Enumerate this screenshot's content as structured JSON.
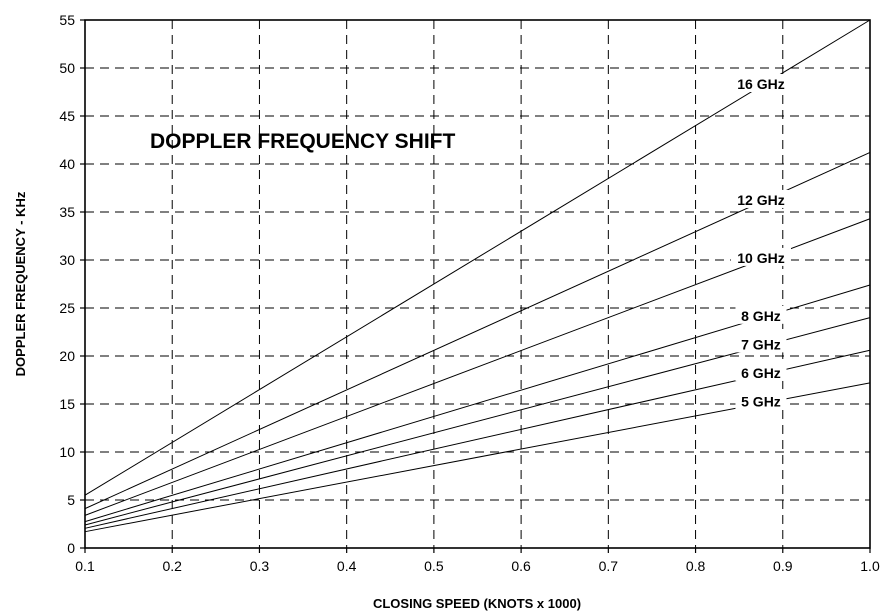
{
  "chart_data": {
    "type": "line",
    "title": "DOPPLER FREQUENCY SHIFT",
    "xlabel": "CLOSING SPEED (KNOTS x 1000)",
    "ylabel": "DOPPLER FREQUENCY  -  KHz",
    "xlim": [
      0.1,
      1.0
    ],
    "ylim": [
      0,
      55
    ],
    "x_ticks": [
      "0.1",
      "0.2",
      "0.3",
      "0.4",
      "0.5",
      "0.6",
      "0.7",
      "0.8",
      "0.9",
      "1.0"
    ],
    "y_ticks": [
      "0",
      "5",
      "10",
      "15",
      "20",
      "25",
      "30",
      "35",
      "40",
      "45",
      "50",
      "55"
    ],
    "grid": true,
    "x": [
      0.1,
      1.0
    ],
    "series": [
      {
        "name": "16 GHz",
        "values": [
          5.5,
          55.0
        ]
      },
      {
        "name": "12 GHz",
        "values": [
          4.1,
          41.2
        ]
      },
      {
        "name": "10 GHz",
        "values": [
          3.4,
          34.3
        ]
      },
      {
        "name": "8 GHz",
        "values": [
          2.75,
          27.4
        ]
      },
      {
        "name": "7 GHz",
        "values": [
          2.4,
          24.0
        ]
      },
      {
        "name": "6 GHz",
        "values": [
          2.05,
          20.6
        ]
      },
      {
        "name": "5 GHz",
        "values": [
          1.7,
          17.2
        ]
      }
    ]
  }
}
